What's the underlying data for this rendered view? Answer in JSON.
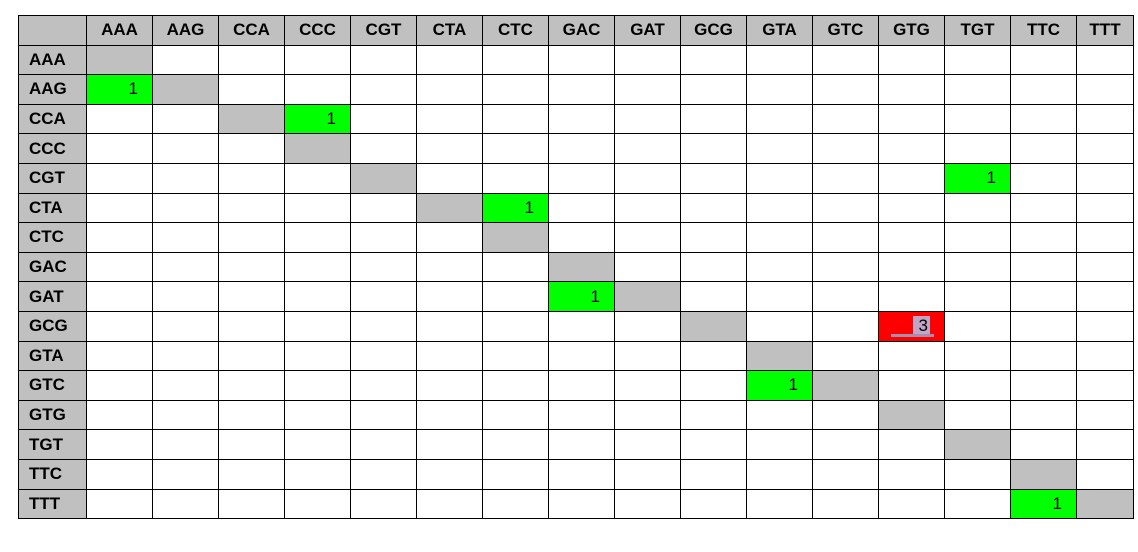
{
  "chart_data": {
    "type": "table",
    "codons": [
      "AAA",
      "AAG",
      "CCA",
      "CCC",
      "CGT",
      "CTA",
      "CTC",
      "GAC",
      "GAT",
      "GCG",
      "GTA",
      "GTC",
      "GTG",
      "TGT",
      "TTC",
      "TTT"
    ],
    "cells": [
      {
        "row": "AAG",
        "col": "AAA",
        "value": 1
      },
      {
        "row": "CCA",
        "col": "CCC",
        "value": 1
      },
      {
        "row": "CGT",
        "col": "TGT",
        "value": 1
      },
      {
        "row": "CTA",
        "col": "CTC",
        "value": 1
      },
      {
        "row": "GAT",
        "col": "GAC",
        "value": 1
      },
      {
        "row": "GCG",
        "col": "GTG",
        "value": 3
      },
      {
        "row": "GTC",
        "col": "GTA",
        "value": 1
      },
      {
        "row": "TTT",
        "col": "TTC",
        "value": 1
      }
    ],
    "colors": {
      "header_bg": "#c0c0c0",
      "diagonal": "#c0c0c0",
      "count_1": "#00ff00",
      "count_high": "#ff0000",
      "empty": "#ffffff",
      "border": "#000000"
    }
  }
}
